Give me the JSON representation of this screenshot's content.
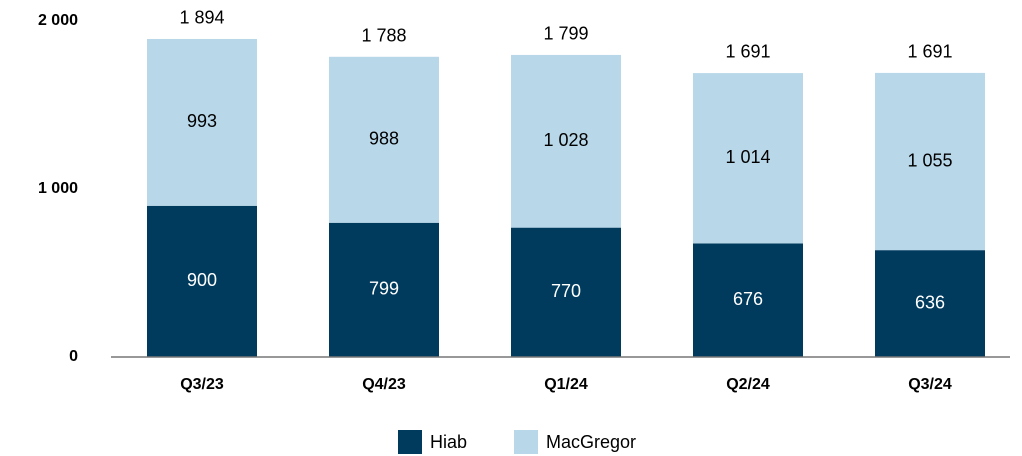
{
  "chart_data": {
    "type": "stacked_bar",
    "categories": [
      "Q3/23",
      "Q4/23",
      "Q1/24",
      "Q2/24",
      "Q3/24"
    ],
    "series": [
      {
        "name": "Hiab",
        "color": "#003a5d",
        "values": [
          900,
          799,
          770,
          676,
          636
        ]
      },
      {
        "name": "MacGregor",
        "color": "#b8d8ea",
        "values": [
          993,
          988,
          1028,
          1014,
          1055
        ],
        "value_labels": [
          "993",
          "988",
          "1 028",
          "1 014",
          "1 055"
        ]
      }
    ],
    "totals": [
      1894,
      1788,
      1799,
      1691,
      1691
    ],
    "total_labels": [
      "1 894",
      "1 788",
      "1 799",
      "1 691",
      "1 691"
    ],
    "ylim": [
      0,
      2000
    ],
    "yticks": [
      0,
      {
        "value": 1000,
        "label": "1 000"
      },
      {
        "value": 2000,
        "label": "2 000"
      }
    ],
    "grid": false,
    "legend": "bottom"
  }
}
